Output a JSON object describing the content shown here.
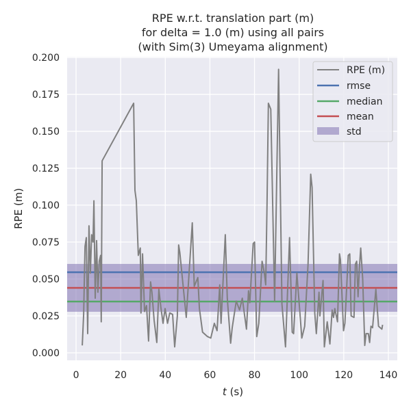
{
  "chart_data": {
    "type": "line",
    "title": [
      "RPE w.r.t. translation part (m)",
      "for delta = 1.0 (m) using all pairs",
      "(with Sim(3) Umeyama alignment)"
    ],
    "xlabel_italic": "t",
    "xlabel_unit": " (s)",
    "ylabel": "RPE (m)",
    "xlim": [
      -4,
      144
    ],
    "ylim": [
      -0.0051,
      0.2005
    ],
    "xticks": [
      0,
      20,
      40,
      60,
      80,
      100,
      120,
      140
    ],
    "xtick_labels": [
      "0",
      "20",
      "40",
      "60",
      "80",
      "100",
      "120",
      "140"
    ],
    "yticks": [
      0,
      0.025,
      0.05,
      0.075,
      0.1,
      0.125,
      0.15,
      0.175,
      0.2
    ],
    "ytick_labels": [
      "0.000",
      "0.025",
      "0.050",
      "0.075",
      "0.100",
      "0.125",
      "0.150",
      "0.175",
      "0.200"
    ],
    "grid": true,
    "legend_position": "top-right",
    "legend": [
      "RPE (m)",
      "rmse",
      "median",
      "mean",
      "std"
    ],
    "colors": {
      "rpe": "#808080",
      "rmse": "#4c72b0",
      "median": "#55a868",
      "mean": "#c44e52",
      "std": "#8172b3",
      "bg": "#eaeaf2"
    },
    "stats": {
      "rmse": 0.0546,
      "median": 0.0347,
      "mean": 0.044,
      "std": 0.0162
    },
    "series": [
      {
        "name": "RPE (m)",
        "points": [
          [
            2.8,
            0.005
          ],
          [
            3.4,
            0.026
          ],
          [
            4.0,
            0.072
          ],
          [
            4.6,
            0.078
          ],
          [
            5.2,
            0.013
          ],
          [
            5.8,
            0.086
          ],
          [
            6.4,
            0.054
          ],
          [
            7.0,
            0.08
          ],
          [
            7.6,
            0.075
          ],
          [
            8.0,
            0.103
          ],
          [
            8.6,
            0.037
          ],
          [
            9.2,
            0.076
          ],
          [
            9.8,
            0.041
          ],
          [
            10.4,
            0.062
          ],
          [
            11.0,
            0.066
          ],
          [
            11.3,
            0.021
          ],
          [
            11.7,
            0.13
          ],
          [
            25.8,
            0.169
          ],
          [
            26.4,
            0.11
          ],
          [
            27.0,
            0.103
          ],
          [
            27.9,
            0.066
          ],
          [
            28.8,
            0.071
          ],
          [
            29.1,
            0.027
          ],
          [
            29.8,
            0.067
          ],
          [
            30.7,
            0.028
          ],
          [
            31.6,
            0.032
          ],
          [
            32.5,
            0.008
          ],
          [
            33.4,
            0.048
          ],
          [
            34.0,
            0.041
          ],
          [
            35.0,
            0.022
          ],
          [
            36.2,
            0.007
          ],
          [
            37.1,
            0.043
          ],
          [
            38.0,
            0.031
          ],
          [
            39.0,
            0.02
          ],
          [
            39.9,
            0.03
          ],
          [
            41.0,
            0.02
          ],
          [
            42.0,
            0.027
          ],
          [
            43.3,
            0.026
          ],
          [
            44.2,
            0.004
          ],
          [
            45.4,
            0.025
          ],
          [
            46.0,
            0.073
          ],
          [
            46.5,
            0.068
          ],
          [
            49.4,
            0.024
          ],
          [
            52.1,
            0.088
          ],
          [
            53.0,
            0.045
          ],
          [
            54.6,
            0.051
          ],
          [
            55.3,
            0.03
          ],
          [
            56.7,
            0.014
          ],
          [
            58.9,
            0.011
          ],
          [
            60.4,
            0.01
          ],
          [
            62.0,
            0.02
          ],
          [
            63.2,
            0.015
          ],
          [
            64.4,
            0.046
          ],
          [
            65.0,
            0.02
          ],
          [
            66.9,
            0.08
          ],
          [
            67.8,
            0.037
          ],
          [
            69.3,
            0.0065
          ],
          [
            70.0,
            0.017
          ],
          [
            71.8,
            0.035
          ],
          [
            73.3,
            0.029
          ],
          [
            74.5,
            0.037
          ],
          [
            76.4,
            0.016
          ],
          [
            77.3,
            0.042
          ],
          [
            77.9,
            0.034
          ],
          [
            79.4,
            0.074
          ],
          [
            80.0,
            0.075
          ],
          [
            81.0,
            0.011
          ],
          [
            81.9,
            0.02
          ],
          [
            83.4,
            0.062
          ],
          [
            84.4,
            0.054
          ],
          [
            85.0,
            0.046
          ],
          [
            85.6,
            0.1
          ],
          [
            86.2,
            0.169
          ],
          [
            87.3,
            0.165
          ],
          [
            89.0,
            0.035
          ],
          [
            90.8,
            0.192
          ],
          [
            92.3,
            0.033
          ],
          [
            93.9,
            0.004
          ],
          [
            95.7,
            0.078
          ],
          [
            96.9,
            0.014
          ],
          [
            97.5,
            0.013
          ],
          [
            99.0,
            0.054
          ],
          [
            101.2,
            0.01
          ],
          [
            102.5,
            0.018
          ],
          [
            104.0,
            0.06
          ],
          [
            105.2,
            0.121
          ],
          [
            105.8,
            0.112
          ],
          [
            107.0,
            0.027
          ],
          [
            107.7,
            0.013
          ],
          [
            108.9,
            0.041
          ],
          [
            109.3,
            0.025
          ],
          [
            110.7,
            0.049
          ],
          [
            111.3,
            0.004
          ],
          [
            112.6,
            0.021
          ],
          [
            113.8,
            0.006
          ],
          [
            114.8,
            0.029
          ],
          [
            115.4,
            0.024
          ],
          [
            116.0,
            0.03
          ],
          [
            117.2,
            0.021
          ],
          [
            118.1,
            0.067
          ],
          [
            118.5,
            0.063
          ],
          [
            119.9,
            0.015
          ],
          [
            120.5,
            0.02
          ],
          [
            122.0,
            0.066
          ],
          [
            122.7,
            0.067
          ],
          [
            123.3,
            0.025
          ],
          [
            124.6,
            0.024
          ],
          [
            125.2,
            0.06
          ],
          [
            125.8,
            0.062
          ],
          [
            126.4,
            0.038
          ],
          [
            127.0,
            0.057
          ],
          [
            127.6,
            0.071
          ],
          [
            128.5,
            0.05
          ],
          [
            129.4,
            0.005
          ],
          [
            130.0,
            0.013
          ],
          [
            131.0,
            0.013
          ],
          [
            131.6,
            0.007
          ],
          [
            132.2,
            0.018
          ],
          [
            132.9,
            0.017
          ],
          [
            134.4,
            0.043
          ],
          [
            135.6,
            0.018
          ],
          [
            137.1,
            0.016
          ],
          [
            137.4,
            0.019
          ]
        ]
      }
    ]
  }
}
